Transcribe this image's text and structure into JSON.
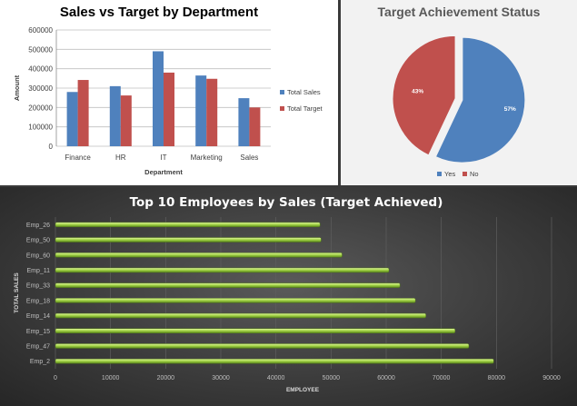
{
  "chart_data": [
    {
      "type": "bar",
      "title": "Sales vs Target by Department",
      "xlabel": "Department",
      "ylabel": "Amount",
      "ylim": [
        0,
        600000
      ],
      "yticks": [
        "0",
        "100000",
        "200000",
        "300000",
        "400000",
        "500000",
        "600000"
      ],
      "categories": [
        "Finance",
        "HR",
        "IT",
        "Marketing",
        "Sales"
      ],
      "series": [
        {
          "name": "Total Sales",
          "color": "#4f81bd",
          "values": [
            280000,
            310000,
            490000,
            365000,
            248000
          ]
        },
        {
          "name": "Total Target",
          "color": "#c0504d",
          "values": [
            342000,
            262000,
            380000,
            348000,
            200000
          ]
        }
      ],
      "legend": "right"
    },
    {
      "type": "pie",
      "title": "Target Achievement Status",
      "labels": [
        "Yes",
        "No"
      ],
      "values": [
        57,
        43
      ],
      "value_labels": [
        "57%",
        "43%"
      ],
      "colors": [
        "#4f81bd",
        "#c0504d"
      ],
      "legend": "bottom"
    },
    {
      "type": "bar",
      "orientation": "horizontal",
      "title": "Top 10 Employees by Sales (Target Achieved)",
      "xlabel": "EMPLOYEE",
      "ylabel": "TOTAL SALES",
      "xlim": [
        0,
        90000
      ],
      "xticks": [
        "0",
        "10000",
        "20000",
        "30000",
        "40000",
        "50000",
        "60000",
        "70000",
        "80000",
        "90000"
      ],
      "categories": [
        "Emp_26",
        "Emp_50",
        "Emp_60",
        "Emp_11",
        "Emp_33",
        "Emp_18",
        "Emp_14",
        "Emp_15",
        "Emp_47",
        "Emp_2"
      ],
      "values": [
        48000,
        48200,
        52000,
        60500,
        62500,
        65300,
        67200,
        72500,
        75000,
        79500
      ],
      "color": "#9bc93a"
    }
  ]
}
